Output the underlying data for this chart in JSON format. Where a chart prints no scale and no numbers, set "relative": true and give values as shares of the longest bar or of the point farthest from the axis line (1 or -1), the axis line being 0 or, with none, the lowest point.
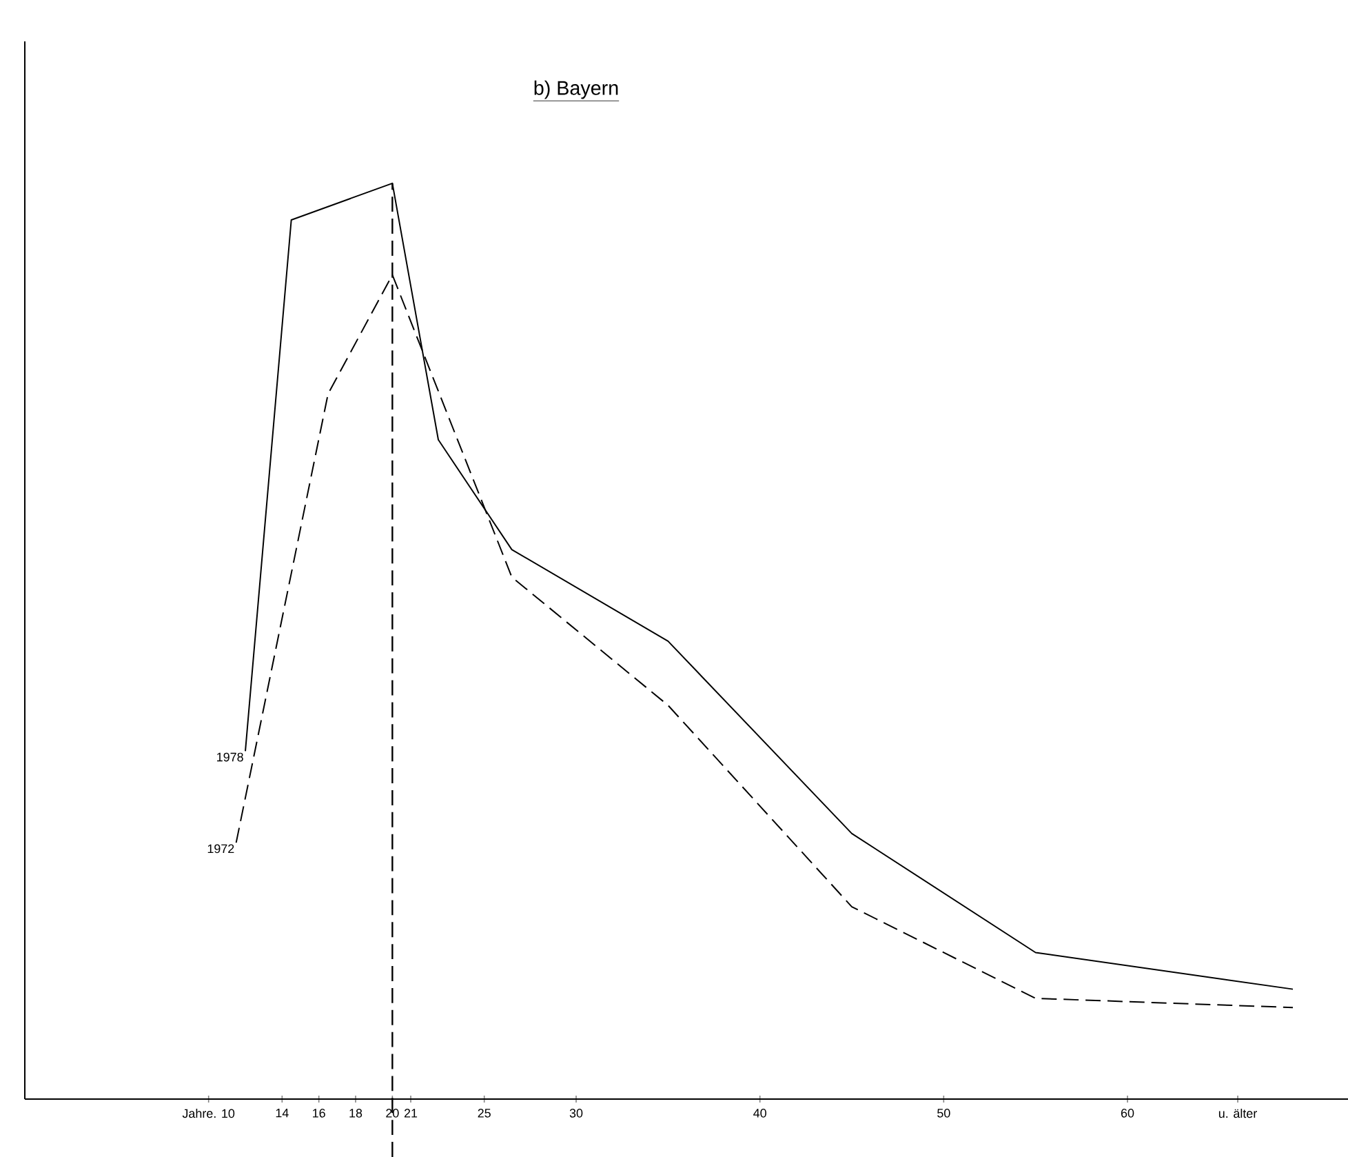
{
  "chart_data": {
    "type": "line",
    "title": "b) Bayern",
    "relative": true,
    "xlim": [
      0,
      72
    ],
    "xticks": [
      {
        "value": 10,
        "label": "Jahre. 10"
      },
      14,
      16,
      18,
      20,
      21,
      25,
      30,
      40,
      50,
      60,
      {
        "value": 66,
        "label": "u. älter"
      }
    ],
    "series": [
      {
        "name": "1978",
        "color": "#000000",
        "line_style": "solid",
        "x": [
          12,
          14.5,
          20,
          22.5,
          26.5,
          35,
          45,
          55,
          69
        ],
        "values": [
          0.38,
          0.96,
          1,
          0.72,
          0.6,
          0.5,
          0.29,
          0.16,
          0.12
        ]
      },
      {
        "name": "1972",
        "color": "#000000",
        "line_style": "dashed",
        "x": [
          11.5,
          16.5,
          20,
          26.5,
          35,
          45,
          55,
          69
        ],
        "values": [
          0.28,
          0.77,
          0.9,
          0.57,
          0.43,
          0.21,
          0.11,
          0.1
        ]
      }
    ],
    "ref_lines": [
      {
        "axis": "x",
        "value": 20,
        "line_style": "dashed"
      }
    ]
  }
}
